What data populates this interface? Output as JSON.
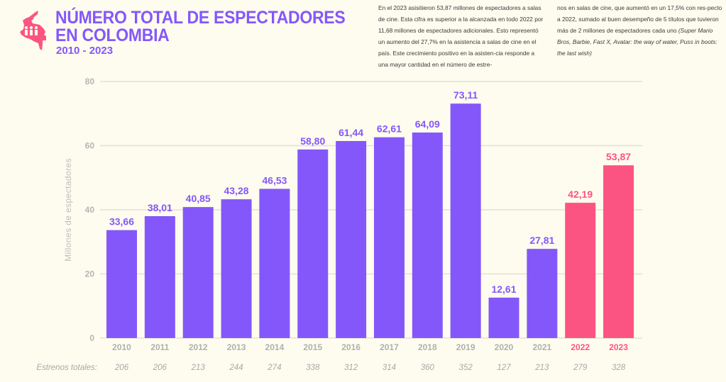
{
  "header": {
    "icon": "colombia-map-people-icon",
    "title_line1": "NÚMERO TOTAL DE ESPECTADORES",
    "title_line2": "EN COLOMBIA",
    "subtitle": "2010 - 2023"
  },
  "description": {
    "col1": "En el 2023 asisitieron 53,87 millones de espectadores a salas de cine. Esta cifra es superior a la alcanzada en todo 2022 por 11,68 millones de espectadores adicionales. Esto representó un aumento del 27,7% en la asistencia a salas de cine en el país. Este crecimiento positivo en la asisten-cia responde a una mayor cantidad en el número de estre-",
    "col2_text": "nos en salas de cine, que aumentó en un 17,5% con res-pecto a 2022, sumado al buen desempeño de 5 títulos que tuvieron más de 2 millones de espectadores cada uno",
    "col2_titles": "(Super Mario Bros, Barbie, Fast X, Avatar: the way of water, Puss in boots: the last wish)"
  },
  "colors": {
    "primary": "#8457fb",
    "highlight": "#fc5482",
    "grid": "#e2e0d6",
    "background": "#fefcef"
  },
  "chart_data": {
    "type": "bar",
    "title": "NÚMERO TOTAL DE ESPECTADORES EN COLOMBIA",
    "subtitle": "2010 - 2023",
    "xlabel": "",
    "ylabel": "Millones de espectadores",
    "ylim": [
      0,
      80
    ],
    "yticks": [
      0,
      20,
      40,
      60,
      80
    ],
    "grid": true,
    "categories": [
      "2010",
      "2011",
      "2012",
      "2013",
      "2014",
      "2015",
      "2016",
      "2017",
      "2018",
      "2019",
      "2020",
      "2021",
      "2022",
      "2023"
    ],
    "values": [
      33.66,
      38.01,
      40.85,
      43.28,
      46.53,
      58.8,
      61.44,
      62.61,
      64.09,
      73.11,
      12.61,
      27.81,
      42.19,
      53.87
    ],
    "value_labels": [
      "33,66",
      "38,01",
      "40,85",
      "43,28",
      "46,53",
      "58,80",
      "61,44",
      "62,61",
      "64,09",
      "73,11",
      "12,61",
      "27,81",
      "42,19",
      "53,87"
    ],
    "highlighted": [
      "2022",
      "2023"
    ],
    "secondary_row": {
      "label": "Estrenos totales:",
      "values": [
        206,
        206,
        213,
        244,
        274,
        338,
        312,
        314,
        360,
        352,
        127,
        213,
        279,
        328
      ]
    }
  }
}
